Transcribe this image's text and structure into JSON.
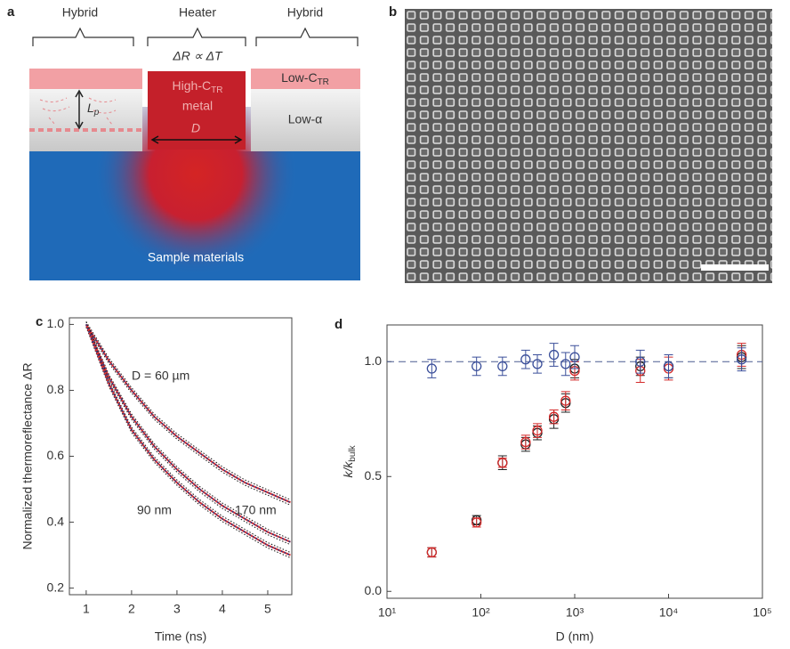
{
  "figure": {
    "panel_a": {
      "label": "a",
      "brackets": [
        "Hybrid",
        "Heater",
        "Hybrid"
      ],
      "relation": "ΔR ∝ ΔT",
      "heater": {
        "line1": "High-C",
        "line1_sub": "TR",
        "line2": "metal",
        "dimension": "D"
      },
      "top_layer": {
        "text": "Low-C",
        "sub": "TR"
      },
      "middle_layer": "Low-α",
      "penetration": {
        "text": "L",
        "sub": "p"
      },
      "substrate": "Sample materials"
    },
    "panel_b": {
      "label": "b"
    }
  },
  "chart_data": [
    {
      "type": "line",
      "panel_label": "c",
      "xlabel": "Time (ns)",
      "ylabel": "Normalized thermoreflectance ΔR",
      "xlim": [
        0.63,
        5.53
      ],
      "ylim": [
        0.18,
        1.02
      ],
      "xticks": [
        1,
        2,
        3,
        4,
        5
      ],
      "yticks": [
        0.2,
        0.4,
        0.6,
        0.8,
        {
          "value": 1,
          "label": "1.0"
        }
      ],
      "fit_color": "#1f3a8a",
      "series": [
        {
          "name": "D = 60 µm",
          "color": "#e03030",
          "x": [
            1,
            1.5,
            2,
            2.5,
            3,
            3.5,
            4,
            4.5,
            5,
            5.5
          ],
          "values": [
            1.0,
            0.89,
            0.8,
            0.72,
            0.66,
            0.61,
            0.56,
            0.52,
            0.49,
            0.46
          ]
        },
        {
          "name": "170 nm",
          "color": "#e03030",
          "x": [
            1,
            1.5,
            2,
            2.5,
            3,
            3.5,
            4,
            4.5,
            5,
            5.5
          ],
          "values": [
            1.0,
            0.84,
            0.72,
            0.63,
            0.56,
            0.5,
            0.45,
            0.41,
            0.37,
            0.34
          ]
        },
        {
          "name": "90 nm",
          "color": "#e03030",
          "x": [
            1,
            1.5,
            2,
            2.5,
            3,
            3.5,
            4,
            4.5,
            5,
            5.5
          ],
          "values": [
            1.0,
            0.82,
            0.68,
            0.59,
            0.52,
            0.46,
            0.41,
            0.37,
            0.33,
            0.3
          ]
        }
      ]
    },
    {
      "type": "scatter",
      "panel_label": "d",
      "xlabel": "D (nm)",
      "ylabel": {
        "text": "k/k",
        "sub": "bulk"
      },
      "xscale": "log",
      "xlim": [
        10,
        100000
      ],
      "ylim": [
        -0.03,
        1.16
      ],
      "xticks": [
        {
          "value": 10,
          "label": "10¹"
        },
        {
          "value": 100,
          "label": "10²"
        },
        {
          "value": 1000,
          "label": "10³"
        },
        {
          "value": 10000,
          "label": "10⁴"
        },
        {
          "value": 100000,
          "label": "10⁵"
        }
      ],
      "yticks": [
        {
          "value": 0,
          "label": "0.0"
        },
        {
          "value": 0.5,
          "label": "0.5"
        },
        {
          "value": 1,
          "label": "1.0"
        }
      ],
      "reference_line": 1,
      "series": [
        {
          "color": "#222222",
          "x": [
            30,
            90,
            170,
            300,
            400,
            600,
            800,
            1000,
            5000,
            10000,
            60000
          ],
          "values": [
            0.17,
            0.31,
            0.56,
            0.64,
            0.69,
            0.75,
            0.82,
            0.97,
            0.98,
            0.98,
            1.02
          ],
          "errors": [
            0.02,
            0.02,
            0.03,
            0.03,
            0.03,
            0.04,
            0.04,
            0.04,
            0.04,
            0.05,
            0.05
          ]
        },
        {
          "color": "#d42a2a",
          "x": [
            30,
            90,
            170,
            300,
            400,
            600,
            800,
            1000,
            5000,
            10000,
            60000
          ],
          "values": [
            0.17,
            0.3,
            0.56,
            0.65,
            0.7,
            0.76,
            0.83,
            0.96,
            0.96,
            0.97,
            1.03
          ],
          "errors": [
            0.02,
            0.02,
            0.02,
            0.03,
            0.03,
            0.03,
            0.04,
            0.04,
            0.05,
            0.05,
            0.05
          ]
        },
        {
          "color": "#3b4f9a",
          "x": [
            30,
            90,
            170,
            300,
            400,
            600,
            800,
            1000,
            5000,
            10000,
            60000
          ],
          "values": [
            0.97,
            0.98,
            0.98,
            1.01,
            0.99,
            1.03,
            0.99,
            1.02,
            1.0,
            0.98,
            1.01
          ],
          "errors": [
            0.04,
            0.04,
            0.04,
            0.04,
            0.04,
            0.05,
            0.05,
            0.05,
            0.05,
            0.05,
            0.05
          ]
        }
      ]
    }
  ]
}
